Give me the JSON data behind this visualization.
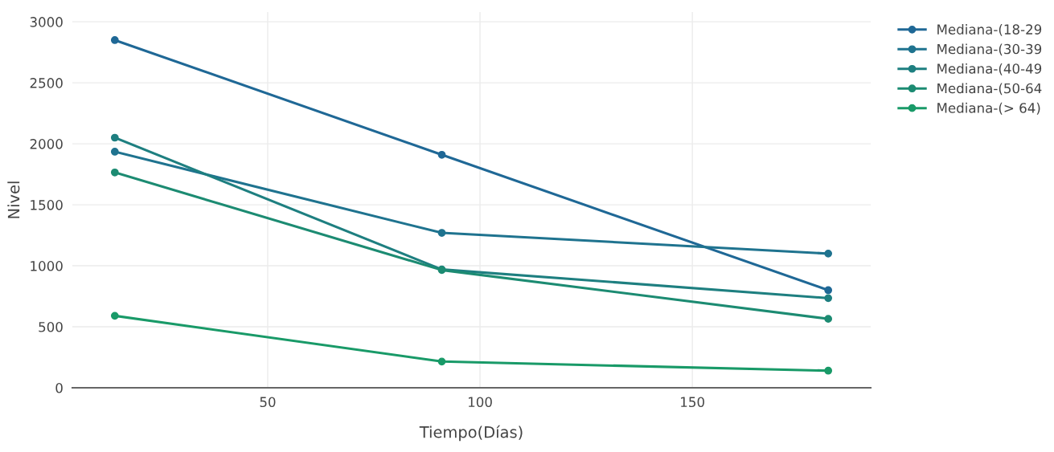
{
  "chart_data": {
    "type": "line",
    "xlabel": "Tiempo(Días)",
    "ylabel": "Nivel",
    "x": [
      14,
      91,
      182
    ],
    "series": [
      {
        "name": "Mediana-(18-29",
        "color": "#1f6896",
        "values": [
          2850,
          1910,
          800
        ]
      },
      {
        "name": "Mediana-(30-39",
        "color": "#1f738f",
        "values": [
          1935,
          1270,
          1100
        ]
      },
      {
        "name": "Mediana-(40-49",
        "color": "#1e7f80",
        "values": [
          2050,
          970,
          735
        ]
      },
      {
        "name": "Mediana-(50-64",
        "color": "#1c8b72",
        "values": [
          1765,
          965,
          565
        ]
      },
      {
        "name": "Mediana-(> 64)",
        "color": "#199a68",
        "values": [
          590,
          215,
          140
        ]
      }
    ],
    "xlim": [
      4,
      192
    ],
    "ylim": [
      0,
      3080
    ],
    "xticks": [
      50,
      100,
      150
    ],
    "yticks": [
      0,
      500,
      1000,
      1500,
      2000,
      2500,
      3000
    ],
    "grid": true,
    "legend": "top right",
    "marker": "circle",
    "line_style": "solid"
  }
}
